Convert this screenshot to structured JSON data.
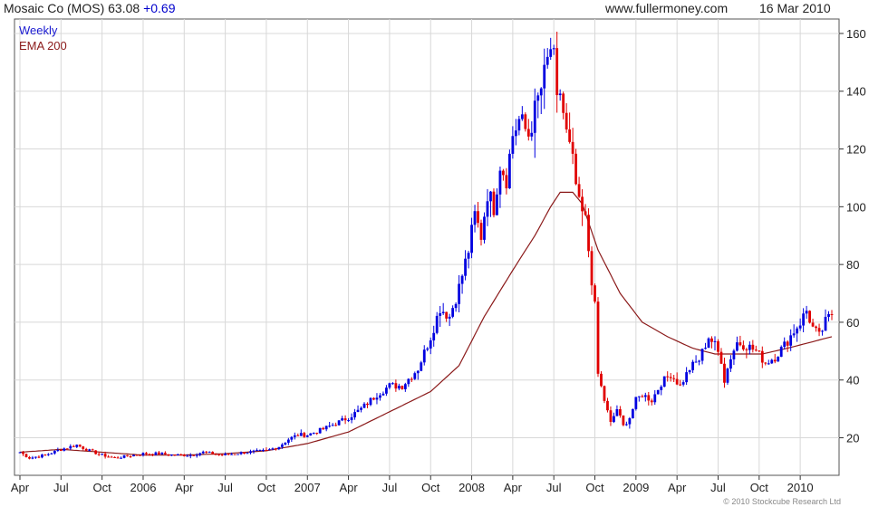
{
  "header": {
    "ticker_title": "Mosaic Co (MOS) 63.08",
    "change": "+0.69",
    "source": "www.fullermoney.com",
    "date": "16 Mar 2010"
  },
  "legend": {
    "weekly": "Weekly",
    "ema": "EMA 200"
  },
  "copyright": "© 2010 Stockcube Research Ltd",
  "colors": {
    "up": "#0000e0",
    "down": "#e00000",
    "ema": "#8b1a1a",
    "grid": "#d8d8d8",
    "axis": "#333333",
    "change": "#0000cc"
  },
  "chart_data": {
    "type": "candlestick",
    "title": "Mosaic Co (MOS) 63.08",
    "ylim": [
      7,
      165
    ],
    "y_ticks": [
      20,
      40,
      60,
      80,
      100,
      120,
      140,
      160
    ],
    "x_ticks": [
      {
        "label": "Apr",
        "week": 0
      },
      {
        "label": "Jul",
        "week": 13
      },
      {
        "label": "Oct",
        "week": 26
      },
      {
        "label": "2006",
        "week": 39
      },
      {
        "label": "Apr",
        "week": 52
      },
      {
        "label": "Jul",
        "week": 65
      },
      {
        "label": "Oct",
        "week": 78
      },
      {
        "label": "2007",
        "week": 91
      },
      {
        "label": "Apr",
        "week": 104
      },
      {
        "label": "Jul",
        "week": 117
      },
      {
        "label": "Oct",
        "week": 130
      },
      {
        "label": "2008",
        "week": 143
      },
      {
        "label": "Apr",
        "week": 156
      },
      {
        "label": "Jul",
        "week": 169
      },
      {
        "label": "Oct",
        "week": 182
      },
      {
        "label": "2009",
        "week": 195
      },
      {
        "label": "Apr",
        "week": 208
      },
      {
        "label": "Jul",
        "week": 221
      },
      {
        "label": "Oct",
        "week": 234
      },
      {
        "label": "2010",
        "week": 247
      }
    ],
    "weeks_total": 258,
    "close_anchors": [
      [
        0,
        15
      ],
      [
        3,
        13
      ],
      [
        8,
        14
      ],
      [
        13,
        16
      ],
      [
        18,
        17.5
      ],
      [
        22,
        15.5
      ],
      [
        26,
        14
      ],
      [
        30,
        13
      ],
      [
        36,
        14
      ],
      [
        39,
        14.5
      ],
      [
        44,
        14.5
      ],
      [
        49,
        14
      ],
      [
        54,
        14
      ],
      [
        58,
        15
      ],
      [
        64,
        14
      ],
      [
        68,
        14.5
      ],
      [
        72,
        15
      ],
      [
        78,
        15.5
      ],
      [
        82,
        17
      ],
      [
        85,
        19.5
      ],
      [
        88,
        21
      ],
      [
        91,
        21
      ],
      [
        96,
        23
      ],
      [
        100,
        25
      ],
      [
        104,
        27
      ],
      [
        108,
        30
      ],
      [
        113,
        35
      ],
      [
        117,
        38
      ],
      [
        121,
        38
      ],
      [
        126,
        44
      ],
      [
        130,
        55
      ],
      [
        133,
        65
      ],
      [
        136,
        62
      ],
      [
        139,
        72
      ],
      [
        142,
        85
      ],
      [
        144,
        97
      ],
      [
        146,
        90
      ],
      [
        148,
        105
      ],
      [
        150,
        100
      ],
      [
        152,
        115
      ],
      [
        154,
        110
      ],
      [
        156,
        125
      ],
      [
        158,
        130
      ],
      [
        161,
        125
      ],
      [
        164,
        137
      ],
      [
        166,
        145
      ],
      [
        168,
        155
      ],
      [
        169,
        150
      ],
      [
        170,
        135
      ],
      [
        171,
        140
      ],
      [
        173,
        125
      ],
      [
        175,
        115
      ],
      [
        177,
        100
      ],
      [
        179,
        95
      ],
      [
        181,
        75
      ],
      [
        182,
        65
      ],
      [
        183,
        42
      ],
      [
        185,
        33
      ],
      [
        187,
        25
      ],
      [
        189,
        30
      ],
      [
        191,
        24
      ],
      [
        193,
        27
      ],
      [
        195,
        33
      ],
      [
        197,
        35
      ],
      [
        200,
        33
      ],
      [
        203,
        39
      ],
      [
        206,
        42
      ],
      [
        209,
        38
      ],
      [
        212,
        44
      ],
      [
        215,
        47
      ],
      [
        218,
        55
      ],
      [
        220,
        52
      ],
      [
        222,
        47
      ],
      [
        223,
        40
      ],
      [
        225,
        48
      ],
      [
        227,
        53
      ],
      [
        230,
        52
      ],
      [
        233,
        50
      ],
      [
        236,
        46
      ],
      [
        239,
        48
      ],
      [
        242,
        52
      ],
      [
        245,
        57
      ],
      [
        247,
        60
      ],
      [
        249,
        64
      ],
      [
        251,
        58
      ],
      [
        253,
        55
      ],
      [
        255,
        60
      ],
      [
        257,
        63
      ]
    ],
    "ema_anchors": [
      [
        0,
        15
      ],
      [
        13,
        16
      ],
      [
        26,
        15
      ],
      [
        39,
        14
      ],
      [
        52,
        14
      ],
      [
        65,
        14.5
      ],
      [
        78,
        15.5
      ],
      [
        91,
        18
      ],
      [
        104,
        22
      ],
      [
        117,
        29
      ],
      [
        130,
        36
      ],
      [
        139,
        45
      ],
      [
        147,
        62
      ],
      [
        156,
        78
      ],
      [
        163,
        90
      ],
      [
        168,
        100
      ],
      [
        171,
        105
      ],
      [
        175,
        105
      ],
      [
        178,
        101
      ],
      [
        183,
        85
      ],
      [
        190,
        70
      ],
      [
        197,
        60
      ],
      [
        205,
        55
      ],
      [
        213,
        51
      ],
      [
        220,
        49
      ],
      [
        228,
        49
      ],
      [
        235,
        49
      ],
      [
        243,
        51
      ],
      [
        250,
        53
      ],
      [
        257,
        55
      ]
    ]
  }
}
